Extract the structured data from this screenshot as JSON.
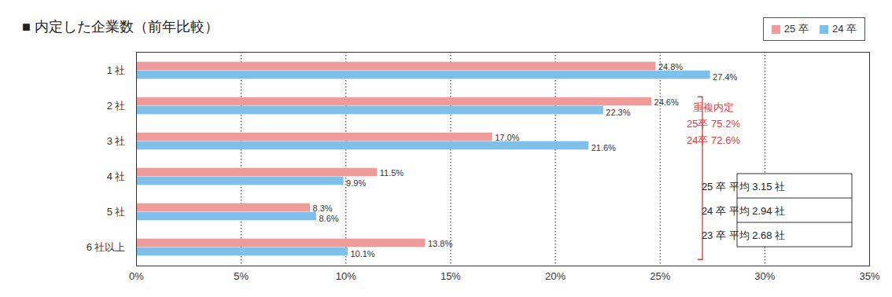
{
  "chart_data": {
    "type": "bar",
    "orientation": "horizontal",
    "title": "■ 内定した企業数（前年比較）",
    "categories": [
      "1 社",
      "2 社",
      "3 社",
      "4 社",
      "5 社",
      "6 社以上"
    ],
    "series": [
      {
        "name": "25 卒",
        "color": "#ee9b99",
        "values": [
          24.8,
          24.6,
          17.0,
          11.5,
          8.3,
          13.8
        ],
        "value_labels": [
          "24.8%",
          "24.6%",
          "17.0%",
          "11.5%",
          "8.3%",
          "13.8%"
        ]
      },
      {
        "name": "24 卒",
        "color": "#7fc0ea",
        "values": [
          27.4,
          22.3,
          21.6,
          9.9,
          8.6,
          10.1
        ],
        "value_labels": [
          "27.4%",
          "22.3%",
          "21.6%",
          "9.9%",
          "8.6%",
          "10.1%"
        ]
      }
    ],
    "xlim": [
      0,
      35
    ],
    "xticks": [
      {
        "value": 0,
        "label": "0%"
      },
      {
        "value": 5,
        "label": "5%"
      },
      {
        "value": 10,
        "label": "10%"
      },
      {
        "value": 15,
        "label": "15%"
      },
      {
        "value": 20,
        "label": "20%"
      },
      {
        "value": 25,
        "label": "25%"
      },
      {
        "value": 30,
        "label": "30%"
      },
      {
        "value": 35,
        "label": "35%"
      }
    ],
    "grid": true,
    "legend": "top-right",
    "data_labels": true,
    "annotations": [
      {
        "lines": [
          "重複内定",
          "25卒 75.2%",
          "24卒 72.6%"
        ]
      },
      {
        "lines": [
          "25 卒 平均 3.15 社",
          "24 卒 平均 2.94 社",
          "23 卒 平均 2.68 社"
        ]
      }
    ]
  }
}
